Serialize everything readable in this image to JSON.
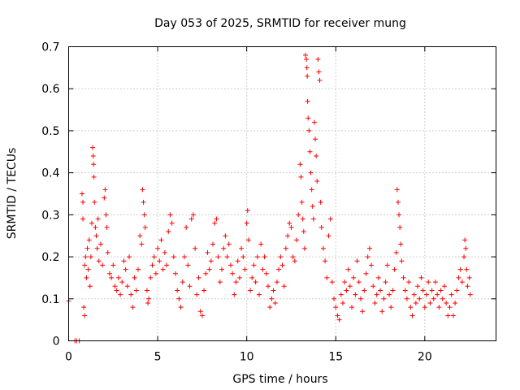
{
  "chart_data": {
    "type": "scatter",
    "title": "Day 053 of 2025, SRMTID for receiver mung",
    "xlabel": "GPS time / hours",
    "ylabel": "SRMTID / TECUs",
    "xlim": [
      0,
      24
    ],
    "ylim": [
      0,
      0.7
    ],
    "xticks": [
      0,
      5,
      10,
      15,
      20
    ],
    "yticks": [
      0,
      0.1,
      0.2,
      0.3,
      0.4,
      0.5,
      0.6,
      0.7
    ],
    "xtick_labels": [
      "0",
      "5",
      "10",
      "15",
      "20"
    ],
    "ytick_labels": [
      "0",
      "0.1",
      "0.2",
      "0.3",
      "0.4",
      "0.5",
      "0.6",
      "0.7"
    ],
    "grid": true,
    "marker": "+",
    "color": "#ff0000",
    "series": [
      {
        "name": "SRMTID",
        "points": [
          [
            0.0,
            0.095
          ],
          [
            0.35,
            0.0
          ],
          [
            0.45,
            0.0
          ],
          [
            0.6,
            0.0
          ],
          [
            0.75,
            0.35
          ],
          [
            0.8,
            0.33
          ],
          [
            0.8,
            0.29
          ],
          [
            0.85,
            0.08
          ],
          [
            0.9,
            0.06
          ],
          [
            0.9,
            0.18
          ],
          [
            0.95,
            0.2
          ],
          [
            1.0,
            0.15
          ],
          [
            1.05,
            0.22
          ],
          [
            1.1,
            0.17
          ],
          [
            1.15,
            0.24
          ],
          [
            1.2,
            0.13
          ],
          [
            1.25,
            0.2
          ],
          [
            1.3,
            0.28
          ],
          [
            1.35,
            0.46
          ],
          [
            1.38,
            0.44
          ],
          [
            1.4,
            0.42
          ],
          [
            1.42,
            0.39
          ],
          [
            1.45,
            0.33
          ],
          [
            1.5,
            0.27
          ],
          [
            1.55,
            0.25
          ],
          [
            1.6,
            0.22
          ],
          [
            1.65,
            0.29
          ],
          [
            1.7,
            0.19
          ],
          [
            1.8,
            0.23
          ],
          [
            1.9,
            0.18
          ],
          [
            2.0,
            0.34
          ],
          [
            2.05,
            0.36
          ],
          [
            2.1,
            0.3
          ],
          [
            2.15,
            0.27
          ],
          [
            2.2,
            0.21
          ],
          [
            2.3,
            0.16
          ],
          [
            2.4,
            0.15
          ],
          [
            2.5,
            0.18
          ],
          [
            2.6,
            0.13
          ],
          [
            2.7,
            0.12
          ],
          [
            2.8,
            0.15
          ],
          [
            2.9,
            0.11
          ],
          [
            3.0,
            0.14
          ],
          [
            3.1,
            0.19
          ],
          [
            3.2,
            0.17
          ],
          [
            3.3,
            0.13
          ],
          [
            3.4,
            0.2
          ],
          [
            3.5,
            0.11
          ],
          [
            3.6,
            0.08
          ],
          [
            3.7,
            0.15
          ],
          [
            3.8,
            0.12
          ],
          [
            3.9,
            0.17
          ],
          [
            4.0,
            0.25
          ],
          [
            4.1,
            0.23
          ],
          [
            4.15,
            0.36
          ],
          [
            4.2,
            0.33
          ],
          [
            4.25,
            0.3
          ],
          [
            4.3,
            0.27
          ],
          [
            4.4,
            0.12
          ],
          [
            4.45,
            0.09
          ],
          [
            4.5,
            0.1
          ],
          [
            4.6,
            0.15
          ],
          [
            4.7,
            0.18
          ],
          [
            4.8,
            0.2
          ],
          [
            4.9,
            0.16
          ],
          [
            5.0,
            0.22
          ],
          [
            5.1,
            0.19
          ],
          [
            5.2,
            0.24
          ],
          [
            5.3,
            0.17
          ],
          [
            5.4,
            0.21
          ],
          [
            5.5,
            0.18
          ],
          [
            5.6,
            0.26
          ],
          [
            5.7,
            0.3
          ],
          [
            5.8,
            0.28
          ],
          [
            5.9,
            0.2
          ],
          [
            6.0,
            0.16
          ],
          [
            6.1,
            0.12
          ],
          [
            6.2,
            0.1
          ],
          [
            6.3,
            0.08
          ],
          [
            6.4,
            0.14
          ],
          [
            6.5,
            0.2
          ],
          [
            6.6,
            0.27
          ],
          [
            6.7,
            0.18
          ],
          [
            6.8,
            0.13
          ],
          [
            6.9,
            0.29
          ],
          [
            7.0,
            0.3
          ],
          [
            7.1,
            0.22
          ],
          [
            7.2,
            0.11
          ],
          [
            7.3,
            0.15
          ],
          [
            7.4,
            0.07
          ],
          [
            7.5,
            0.06
          ],
          [
            7.6,
            0.12
          ],
          [
            7.7,
            0.16
          ],
          [
            7.8,
            0.21
          ],
          [
            7.9,
            0.17
          ],
          [
            8.0,
            0.19
          ],
          [
            8.1,
            0.23
          ],
          [
            8.2,
            0.28
          ],
          [
            8.3,
            0.29
          ],
          [
            8.4,
            0.2
          ],
          [
            8.5,
            0.14
          ],
          [
            8.6,
            0.17
          ],
          [
            8.7,
            0.22
          ],
          [
            8.8,
            0.25
          ],
          [
            8.9,
            0.2
          ],
          [
            9.0,
            0.23
          ],
          [
            9.1,
            0.18
          ],
          [
            9.2,
            0.16
          ],
          [
            9.3,
            0.11
          ],
          [
            9.4,
            0.14
          ],
          [
            9.5,
            0.19
          ],
          [
            9.6,
            0.15
          ],
          [
            9.7,
            0.22
          ],
          [
            9.8,
            0.2
          ],
          [
            9.9,
            0.17
          ],
          [
            10.0,
            0.28
          ],
          [
            10.05,
            0.31
          ],
          [
            10.1,
            0.24
          ],
          [
            10.2,
            0.12
          ],
          [
            10.3,
            0.15
          ],
          [
            10.4,
            0.18
          ],
          [
            10.5,
            0.14
          ],
          [
            10.6,
            0.2
          ],
          [
            10.7,
            0.11
          ],
          [
            10.8,
            0.23
          ],
          [
            10.9,
            0.17
          ],
          [
            11.0,
            0.2
          ],
          [
            11.1,
            0.16
          ],
          [
            11.2,
            0.13
          ],
          [
            11.3,
            0.08
          ],
          [
            11.4,
            0.1
          ],
          [
            11.5,
            0.12
          ],
          [
            11.6,
            0.09
          ],
          [
            11.7,
            0.14
          ],
          [
            11.8,
            0.17
          ],
          [
            11.9,
            0.2
          ],
          [
            12.0,
            0.18
          ],
          [
            12.1,
            0.13
          ],
          [
            12.2,
            0.22
          ],
          [
            12.3,
            0.25
          ],
          [
            12.4,
            0.28
          ],
          [
            12.5,
            0.27
          ],
          [
            12.6,
            0.2
          ],
          [
            12.7,
            0.19
          ],
          [
            12.8,
            0.24
          ],
          [
            12.9,
            0.3
          ],
          [
            13.0,
            0.42
          ],
          [
            13.05,
            0.39
          ],
          [
            13.1,
            0.33
          ],
          [
            13.15,
            0.29
          ],
          [
            13.2,
            0.26
          ],
          [
            13.25,
            0.22
          ],
          [
            13.3,
            0.68
          ],
          [
            13.35,
            0.67
          ],
          [
            13.38,
            0.65
          ],
          [
            13.4,
            0.63
          ],
          [
            13.42,
            0.57
          ],
          [
            13.45,
            0.53
          ],
          [
            13.5,
            0.5
          ],
          [
            13.55,
            0.45
          ],
          [
            13.6,
            0.4
          ],
          [
            13.65,
            0.36
          ],
          [
            13.7,
            0.32
          ],
          [
            13.75,
            0.29
          ],
          [
            13.8,
            0.52
          ],
          [
            13.85,
            0.48
          ],
          [
            13.9,
            0.44
          ],
          [
            13.95,
            0.38
          ],
          [
            14.0,
            0.67
          ],
          [
            14.05,
            0.64
          ],
          [
            14.1,
            0.62
          ],
          [
            14.15,
            0.33
          ],
          [
            14.2,
            0.27
          ],
          [
            14.3,
            0.22
          ],
          [
            14.4,
            0.19
          ],
          [
            14.5,
            0.15
          ],
          [
            14.6,
            0.25
          ],
          [
            14.7,
            0.29
          ],
          [
            14.8,
            0.14
          ],
          [
            14.9,
            0.1
          ],
          [
            15.0,
            0.08
          ],
          [
            15.1,
            0.06
          ],
          [
            15.2,
            0.05
          ],
          [
            15.3,
            0.11
          ],
          [
            15.4,
            0.09
          ],
          [
            15.5,
            0.14
          ],
          [
            15.6,
            0.12
          ],
          [
            15.7,
            0.17
          ],
          [
            15.8,
            0.13
          ],
          [
            15.9,
            0.08
          ],
          [
            16.0,
            0.15
          ],
          [
            16.1,
            0.11
          ],
          [
            16.2,
            0.19
          ],
          [
            16.3,
            0.14
          ],
          [
            16.4,
            0.1
          ],
          [
            16.5,
            0.07
          ],
          [
            16.6,
            0.12
          ],
          [
            16.7,
            0.16
          ],
          [
            16.8,
            0.2
          ],
          [
            16.9,
            0.22
          ],
          [
            17.0,
            0.18
          ],
          [
            17.1,
            0.13
          ],
          [
            17.2,
            0.09
          ],
          [
            17.3,
            0.11
          ],
          [
            17.4,
            0.15
          ],
          [
            17.5,
            0.12
          ],
          [
            17.6,
            0.07
          ],
          [
            17.7,
            0.1
          ],
          [
            17.8,
            0.14
          ],
          [
            17.9,
            0.18
          ],
          [
            18.0,
            0.11
          ],
          [
            18.1,
            0.08
          ],
          [
            18.2,
            0.12
          ],
          [
            18.3,
            0.17
          ],
          [
            18.4,
            0.21
          ],
          [
            18.45,
            0.36
          ],
          [
            18.5,
            0.33
          ],
          [
            18.55,
            0.3
          ],
          [
            18.6,
            0.27
          ],
          [
            18.65,
            0.23
          ],
          [
            18.7,
            0.19
          ],
          [
            18.8,
            0.15
          ],
          [
            18.9,
            0.12
          ],
          [
            19.0,
            0.1
          ],
          [
            19.1,
            0.14
          ],
          [
            19.2,
            0.08
          ],
          [
            19.3,
            0.06
          ],
          [
            19.4,
            0.11
          ],
          [
            19.5,
            0.09
          ],
          [
            19.6,
            0.13
          ],
          [
            19.7,
            0.1
          ],
          [
            19.8,
            0.15
          ],
          [
            19.9,
            0.12
          ],
          [
            20.0,
            0.08
          ],
          [
            20.1,
            0.11
          ],
          [
            20.2,
            0.14
          ],
          [
            20.3,
            0.09
          ],
          [
            20.4,
            0.12
          ],
          [
            20.5,
            0.1
          ],
          [
            20.6,
            0.14
          ],
          [
            20.7,
            0.11
          ],
          [
            20.8,
            0.08
          ],
          [
            20.9,
            0.12
          ],
          [
            21.0,
            0.1
          ],
          [
            21.1,
            0.13
          ],
          [
            21.2,
            0.09
          ],
          [
            21.3,
            0.06
          ],
          [
            21.4,
            0.08
          ],
          [
            21.5,
            0.11
          ],
          [
            21.6,
            0.06
          ],
          [
            21.7,
            0.09
          ],
          [
            21.8,
            0.12
          ],
          [
            21.9,
            0.15
          ],
          [
            22.0,
            0.17
          ],
          [
            22.1,
            0.14
          ],
          [
            22.2,
            0.2
          ],
          [
            22.25,
            0.24
          ],
          [
            22.3,
            0.22
          ],
          [
            22.35,
            0.17
          ],
          [
            22.4,
            0.13
          ],
          [
            22.5,
            0.15
          ],
          [
            22.55,
            0.11
          ]
        ]
      }
    ]
  }
}
